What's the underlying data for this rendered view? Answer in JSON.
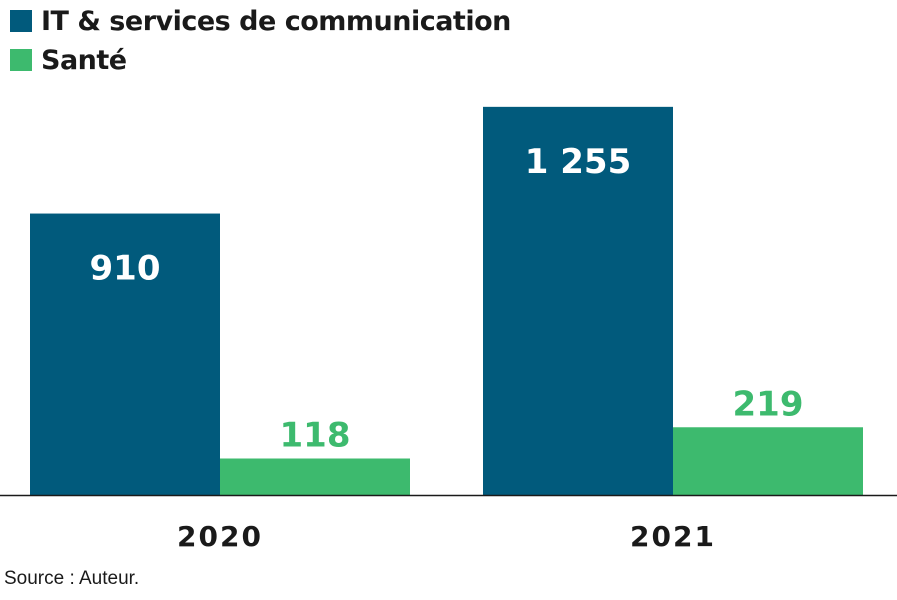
{
  "chart_data": {
    "type": "bar",
    "categories": [
      "2020",
      "2021"
    ],
    "series": [
      {
        "name": "IT & services de communication",
        "values": [
          910,
          1255
        ],
        "labels": [
          "910",
          "1 255"
        ],
        "color": "#015a7c",
        "label_color": "#ffffff"
      },
      {
        "name": "Santé",
        "values": [
          118,
          219
        ],
        "labels": [
          "118",
          "219"
        ],
        "color": "#3dba6e",
        "label_color": "#3dba6e"
      }
    ],
    "ylim": [
      0,
      1400
    ],
    "grid": false,
    "legend_position": "top-left",
    "source": "Source : Auteur."
  }
}
